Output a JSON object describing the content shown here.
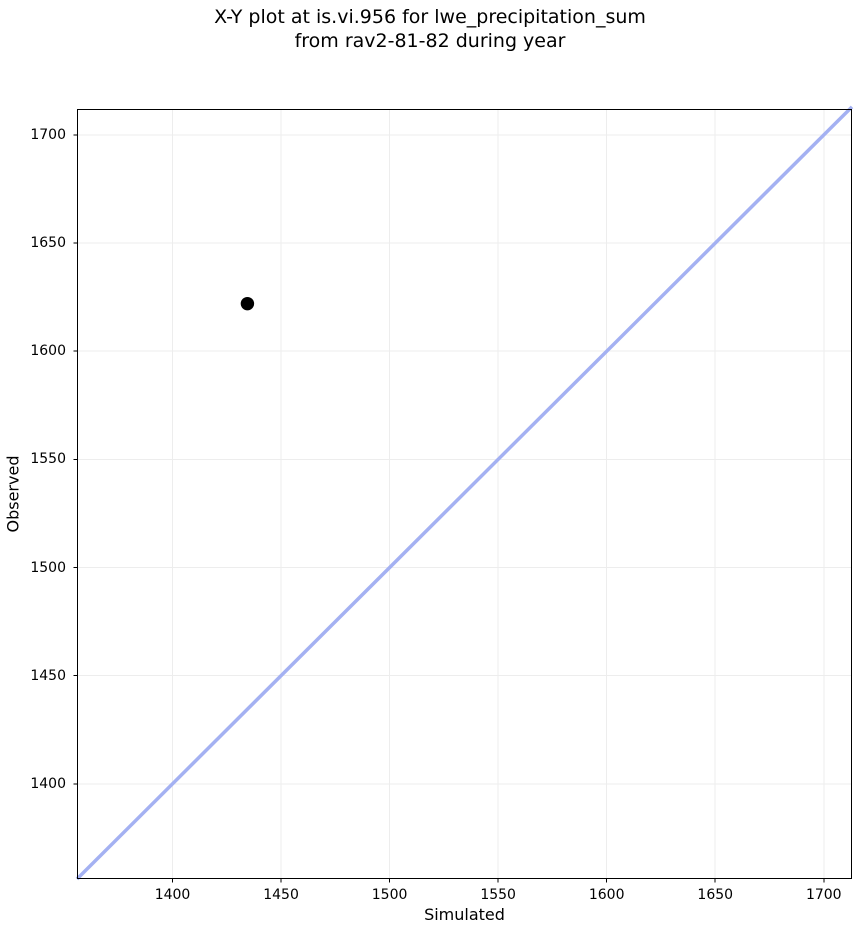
{
  "title_lines": [
    "X-Y plot at is.vi.956 for lwe_precipitation_sum",
    "from rav2-81-82 during year"
  ],
  "chart_data": {
    "type": "scatter",
    "title": "X-Y plot at is.vi.956 for lwe_precipitation_sum\nfrom rav2-81-82 during year",
    "xlabel": "Simulated",
    "ylabel": "Observed",
    "xlim": [
      1356,
      1713
    ],
    "ylim": [
      1356,
      1712
    ],
    "xticks": [
      1400,
      1450,
      1500,
      1550,
      1600,
      1650,
      1700
    ],
    "yticks": [
      1400,
      1450,
      1500,
      1550,
      1600,
      1650,
      1700
    ],
    "grid": true,
    "legend": false,
    "series": [
      {
        "name": "identity_line",
        "type": "line",
        "color": "#a4b1f2",
        "points": [
          [
            1356,
            1356
          ],
          [
            1713,
            1713
          ]
        ]
      },
      {
        "name": "observations",
        "type": "scatter",
        "marker": "circle",
        "color": "#000000",
        "points": [
          [
            1434.5,
            1622
          ]
        ]
      }
    ],
    "colors": {
      "background": "#ffffff",
      "grid": "#ededed",
      "spine": "#000000",
      "tick": "#000000",
      "identity_line": "#a4b1f2",
      "point": "#000000"
    }
  }
}
